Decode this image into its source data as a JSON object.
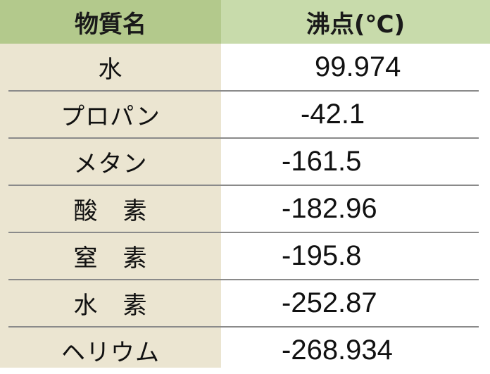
{
  "header": {
    "substance": "物質名",
    "boiling_point": "沸点(℃)"
  },
  "rows": [
    {
      "name": "水",
      "value": "99.974"
    },
    {
      "name": "プロパン",
      "value": "-42.1"
    },
    {
      "name": "メタン",
      "value": "-161.5"
    },
    {
      "name": "酸　素",
      "value": "-182.96"
    },
    {
      "name": "窒　素",
      "value": "-195.8"
    },
    {
      "name": "水　素",
      "value": "-252.87"
    },
    {
      "name": "ヘリウム",
      "value": "-268.934"
    }
  ],
  "colors": {
    "header_left": "#b3c98c",
    "header_right": "#c8dbab",
    "name_column": "#ebe5d1"
  }
}
